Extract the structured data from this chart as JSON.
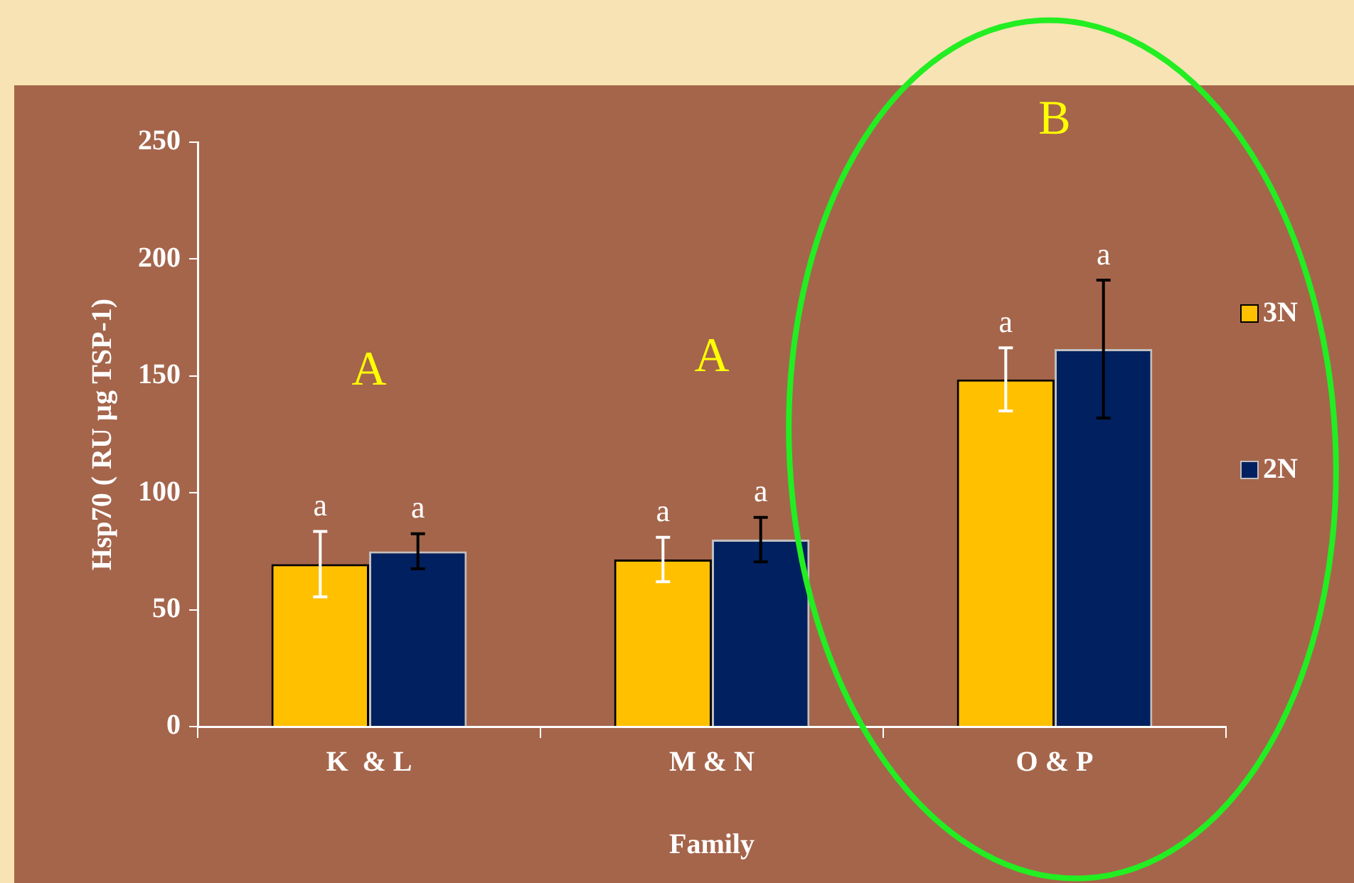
{
  "chart_data": {
    "type": "bar",
    "xlabel": "Family",
    "ylabel": "Hsp70 ( RU µg TSP-1)",
    "categories": [
      "K  & L",
      "M & N",
      "O & P"
    ],
    "series": [
      {
        "name": "3N",
        "color": "#ffc000",
        "values": [
          69.5,
          71.5,
          148.5
        ],
        "errors": [
          14,
          9.5,
          13.5
        ],
        "value_labels": [
          "a",
          "a",
          "a"
        ]
      },
      {
        "name": "2N",
        "color": "#002060",
        "values": [
          75,
          80,
          161.5
        ],
        "errors": [
          7.5,
          9.5,
          29.5
        ],
        "value_labels": [
          "a",
          "a",
          "a"
        ]
      }
    ],
    "ylim": [
      0,
      250
    ],
    "yticks": [
      0,
      50,
      100,
      150,
      200,
      250
    ],
    "grid": false,
    "legend": "right",
    "annotations": [
      "A",
      "A",
      "B"
    ]
  }
}
